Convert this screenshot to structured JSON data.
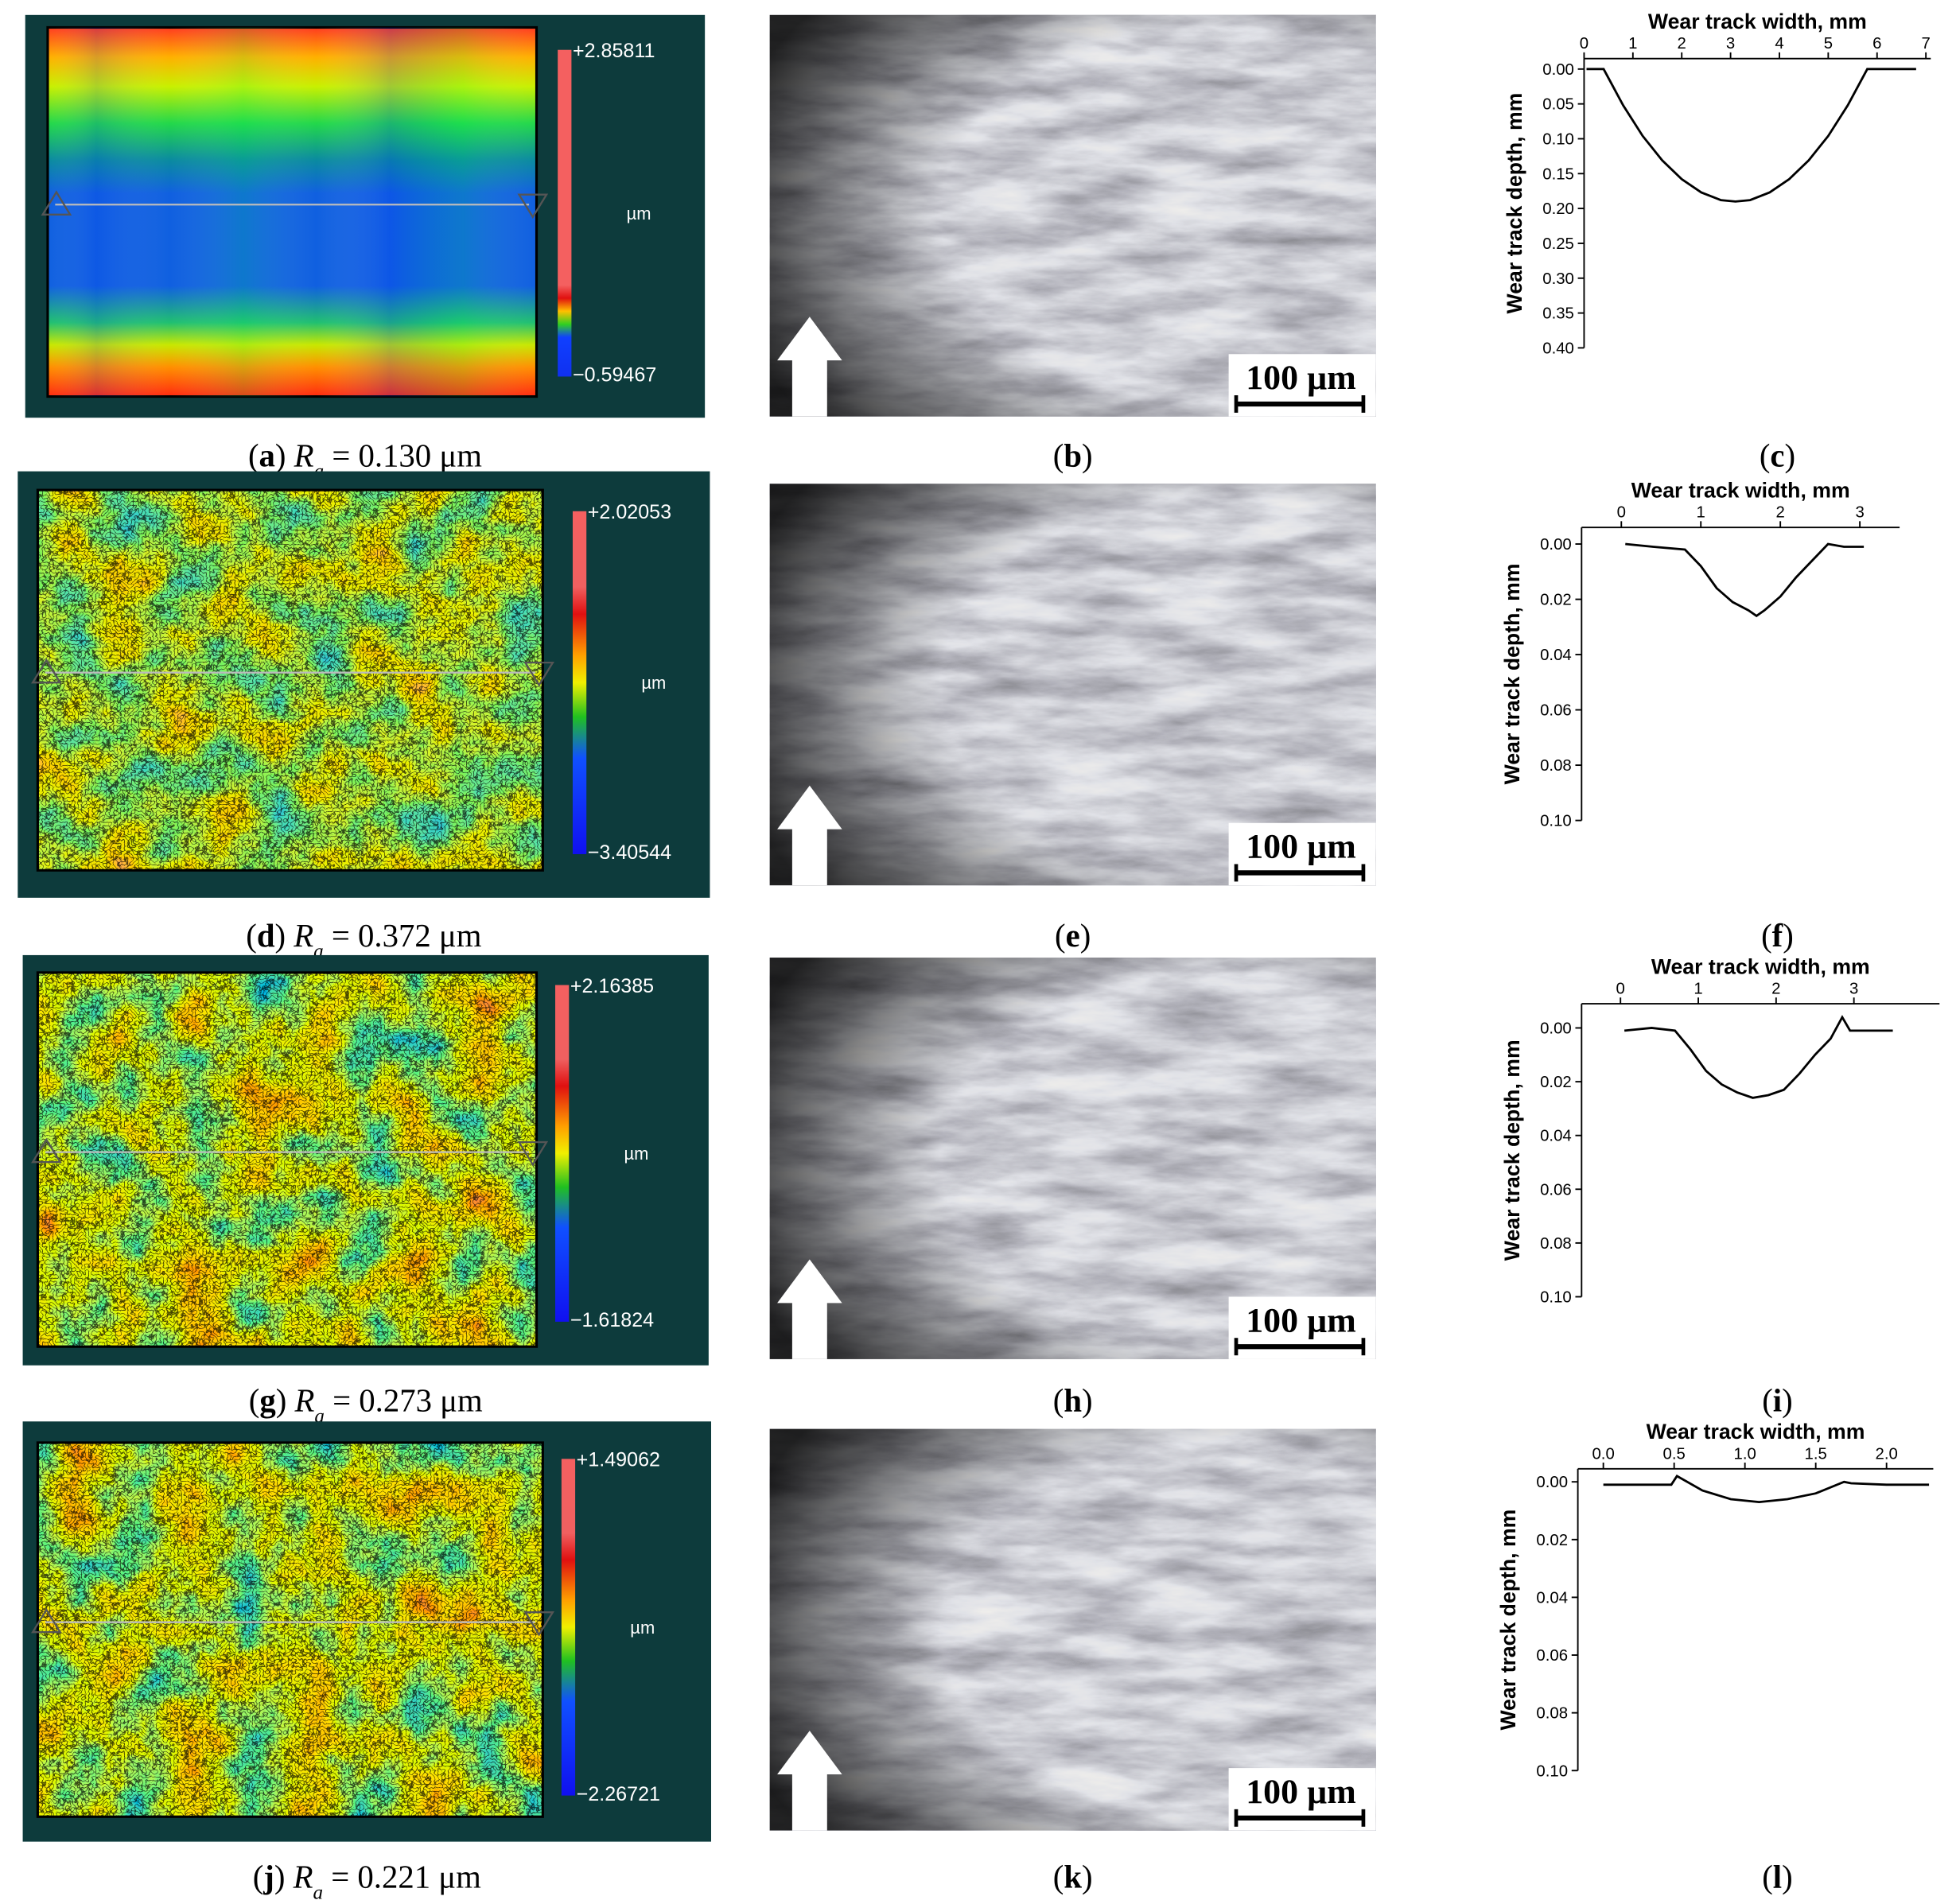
{
  "rows": [
    {
      "height_map": {
        "caption": [
          "(",
          "a",
          ") ",
          "R",
          "a",
          " = 0.130 μm"
        ],
        "colorbar_max": "+2.85811",
        "colorbar_min": "−0.59467",
        "unit": "µm"
      },
      "micrograph": {
        "caption": [
          "(",
          "b",
          ")"
        ],
        "scale_bar": "100 µm"
      },
      "profile_caption": [
        "(",
        "c",
        ")"
      ]
    },
    {
      "height_map": {
        "caption": [
          "(",
          "d",
          ") ",
          "R",
          "a",
          " = 0.372 μm"
        ],
        "colorbar_max": "+2.02053",
        "colorbar_min": "−3.40544",
        "unit": "µm"
      },
      "micrograph": {
        "caption": [
          "(",
          "e",
          ")"
        ],
        "scale_bar": "100 µm"
      },
      "profile_caption": [
        "(",
        "f",
        ")"
      ]
    },
    {
      "height_map": {
        "caption": [
          "(",
          "g",
          ") ",
          "R",
          "a",
          " = 0.273 μm"
        ],
        "colorbar_max": "+2.16385",
        "colorbar_min": "−1.61824",
        "unit": "µm"
      },
      "micrograph": {
        "caption": [
          "(",
          "h",
          ")"
        ],
        "scale_bar": "100 µm"
      },
      "profile_caption": [
        "(",
        "i",
        ")"
      ]
    },
    {
      "height_map": {
        "caption": [
          "(",
          "j",
          ") ",
          "R",
          "a",
          " = 0.221 μm"
        ],
        "colorbar_max": "+1.49062",
        "colorbar_min": "−2.26721",
        "unit": "µm"
      },
      "micrograph": {
        "caption": [
          "(",
          "k",
          ")"
        ],
        "scale_bar": "100 µm"
      },
      "profile_caption": [
        "(",
        "l",
        ")"
      ]
    }
  ],
  "chart_data": [
    {
      "type": "line",
      "x_label": "Wear track width, mm",
      "y_label": "Wear track depth, mm",
      "color": "#000000",
      "x": [
        0.05,
        0.4,
        0.8,
        1.2,
        1.6,
        2.0,
        2.4,
        2.8,
        3.1,
        3.4,
        3.8,
        4.2,
        4.6,
        5.0,
        5.4,
        5.8,
        6.2,
        6.8
      ],
      "values": [
        0,
        0,
        0.052,
        0.096,
        0.131,
        0.158,
        0.177,
        0.188,
        0.19,
        0.188,
        0.177,
        0.158,
        0.131,
        0.096,
        0.052,
        0,
        0,
        0
      ],
      "xlim": [
        0,
        7.1
      ],
      "ylim": [
        -0.015,
        0.4
      ],
      "y_inverted": true,
      "xticks": [
        0,
        1,
        2,
        3,
        4,
        5,
        6,
        7
      ],
      "yticks": [
        {
          "value": 0,
          "label": "0.00"
        },
        0.05,
        {
          "value": 0.1,
          "label": "0.10"
        },
        0.15,
        {
          "value": 0.2,
          "label": "0.20"
        },
        0.25,
        {
          "value": 0.3,
          "label": "0.30"
        },
        0.35,
        {
          "value": 0.4,
          "label": "0.40"
        }
      ]
    },
    {
      "type": "line",
      "x_label": "Wear track width, mm",
      "y_label": "Wear track depth, mm",
      "color": "#000000",
      "x": [
        0.05,
        0.4,
        0.8,
        1.0,
        1.2,
        1.4,
        1.6,
        1.7,
        1.8,
        2.0,
        2.2,
        2.4,
        2.6,
        2.8,
        3.05
      ],
      "values": [
        0,
        0.001,
        0.002,
        0.008,
        0.016,
        0.021,
        0.024,
        0.026,
        0.024,
        0.019,
        0.012,
        0.006,
        0,
        0.001,
        0.001
      ],
      "xlim": [
        -0.5,
        3.5
      ],
      "ylim": [
        -0.006,
        0.1
      ],
      "y_inverted": true,
      "xticks": [
        0,
        1,
        2,
        3
      ],
      "yticks": [
        {
          "value": 0,
          "label": "0.00"
        },
        0.02,
        0.04,
        0.06,
        0.08,
        {
          "value": 0.1,
          "label": "0.10"
        }
      ]
    },
    {
      "type": "line",
      "x_label": "Wear track width, mm",
      "y_label": "Wear track depth, mm",
      "color": "#000000",
      "x": [
        0.05,
        0.4,
        0.7,
        0.9,
        1.1,
        1.3,
        1.5,
        1.7,
        1.9,
        2.1,
        2.3,
        2.5,
        2.7,
        2.85,
        2.95,
        3.2,
        3.5
      ],
      "values": [
        0.001,
        0,
        0.001,
        0.008,
        0.016,
        0.021,
        0.024,
        0.026,
        0.025,
        0.023,
        0.017,
        0.01,
        0.004,
        -0.004,
        0.001,
        0.001,
        0.001
      ],
      "xlim": [
        -0.5,
        4.1
      ],
      "ylim": [
        -0.009,
        0.1
      ],
      "y_inverted": true,
      "xticks": [
        0,
        1,
        2,
        3
      ],
      "yticks": [
        {
          "value": 0,
          "label": "0.00"
        },
        0.02,
        0.04,
        0.06,
        0.08,
        {
          "value": 0.1,
          "label": "0.10"
        }
      ]
    },
    {
      "type": "line",
      "x_label": "Wear track width, mm",
      "y_label": "Wear track depth, mm",
      "color": "#000000",
      "x": [
        0,
        0.3,
        0.48,
        0.52,
        0.7,
        0.9,
        1.1,
        1.3,
        1.5,
        1.7,
        1.75,
        2.0,
        2.3
      ],
      "values": [
        0.001,
        0.001,
        0.001,
        -0.002,
        0.003,
        0.006,
        0.007,
        0.006,
        0.004,
        0,
        0.0005,
        0.001,
        0.001
      ],
      "xlim": [
        -0.18,
        2.33
      ],
      "ylim": [
        -0.0045,
        0.1
      ],
      "y_inverted": true,
      "xticks": [
        {
          "value": 0,
          "label": "0.0"
        },
        0.5,
        {
          "value": 1,
          "label": "1.0"
        },
        1.5,
        {
          "value": 2,
          "label": "2.0"
        }
      ],
      "yticks": [
        {
          "value": 0,
          "label": "0.00"
        },
        0.02,
        0.04,
        0.06,
        0.08,
        {
          "value": 0.1,
          "label": "0.10"
        }
      ]
    }
  ]
}
